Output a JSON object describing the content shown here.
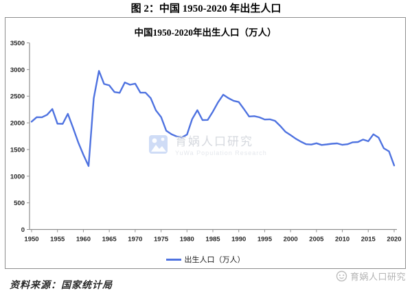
{
  "figure_title": "图 2：中国 1950-2020 年出生人口",
  "chart": {
    "title": "中国1950-2020年出生人口（万人）",
    "legend_label": "出生人口（万人）",
    "watermark_cn": "育娲人口研究",
    "watermark_en": "YuWa Population Research",
    "colors": {
      "line": "#4E72E0",
      "axis": "#8f8f8f",
      "panel_border": "#8c8c8c",
      "tick_label": "#262626",
      "watermark_cn_color": "#d5d8de",
      "watermark_en_color": "#e4e7ec",
      "watermark_logo": "#cfdcf6",
      "footer_watermark_color": "#b3b3b3"
    }
  },
  "icons": {
    "chart_watermark_logo": "yuwa-gallery-logo-icon",
    "footer_watermark_logo": "yuwa-face-logo-icon"
  },
  "footer": {
    "source": "资料来源：国家统计局",
    "watermark": "育娲人口研究"
  },
  "chart_data": {
    "type": "line",
    "title": "中国1950-2020年出生人口（万人）",
    "xlabel": "",
    "ylabel": "",
    "ylim": [
      0,
      3500
    ],
    "ytick_step": 500,
    "xticks": [
      1950,
      1955,
      1960,
      1965,
      1970,
      1975,
      1980,
      1985,
      1990,
      1995,
      2000,
      2005,
      2010,
      2015,
      2020
    ],
    "grid": false,
    "legend_position": "bottom",
    "x": [
      1950,
      1951,
      1952,
      1953,
      1954,
      1955,
      1956,
      1957,
      1958,
      1959,
      1960,
      1961,
      1962,
      1963,
      1964,
      1965,
      1966,
      1967,
      1968,
      1969,
      1970,
      1971,
      1972,
      1973,
      1974,
      1975,
      1976,
      1977,
      1978,
      1979,
      1980,
      1981,
      1982,
      1983,
      1984,
      1985,
      1986,
      1987,
      1988,
      1989,
      1990,
      1991,
      1992,
      1993,
      1994,
      1995,
      1996,
      1997,
      1998,
      1999,
      2000,
      2001,
      2002,
      2003,
      2004,
      2005,
      2006,
      2007,
      2008,
      2009,
      2010,
      2011,
      2012,
      2013,
      2014,
      2015,
      2016,
      2017,
      2018,
      2019,
      2020
    ],
    "series": [
      {
        "name": "出生人口（万人）",
        "color": "#4E72E0",
        "values": [
          2023,
          2107,
          2105,
          2151,
          2260,
          1984,
          1982,
          2169,
          1909,
          1635,
          1402,
          1190,
          2460,
          2975,
          2729,
          2704,
          2577,
          2563,
          2757,
          2715,
          2736,
          2567,
          2566,
          2463,
          2235,
          2109,
          1853,
          1787,
          1745,
          1727,
          1779,
          2069,
          2238,
          2052,
          2055,
          2211,
          2384,
          2529,
          2464,
          2414,
          2391,
          2258,
          2119,
          2126,
          2104,
          2063,
          2067,
          2038,
          1942,
          1834,
          1771,
          1702,
          1647,
          1599,
          1593,
          1617,
          1585,
          1595,
          1608,
          1615,
          1588,
          1600,
          1635,
          1640,
          1687,
          1655,
          1786,
          1723,
          1523,
          1465,
          1200
        ]
      }
    ]
  }
}
